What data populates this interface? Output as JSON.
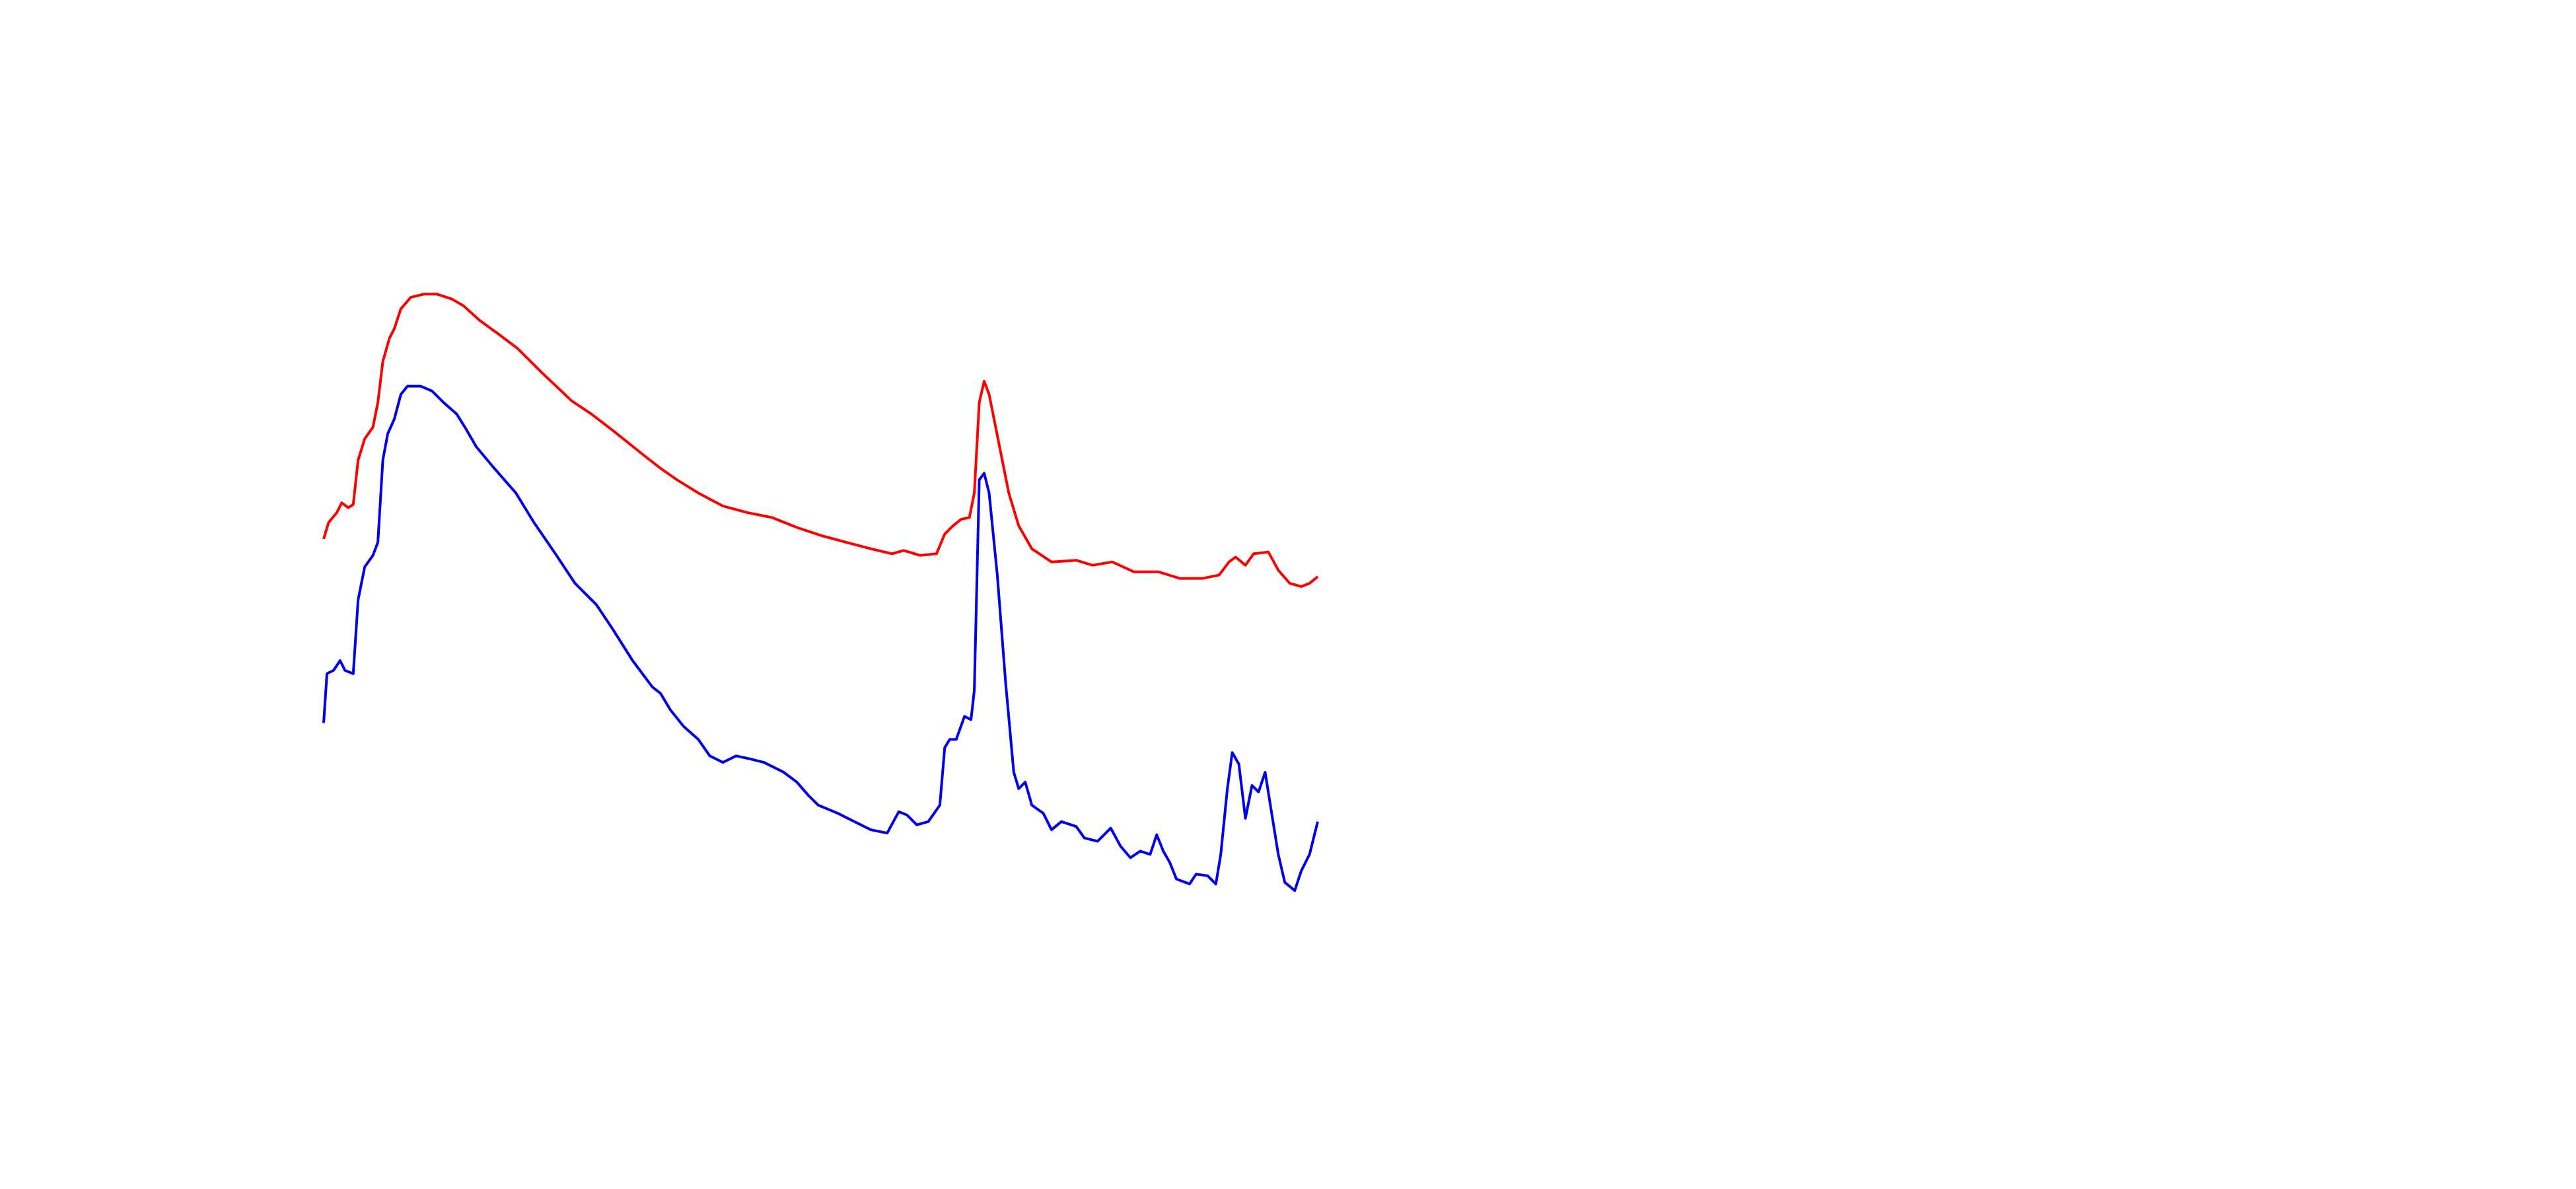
{
  "chart_data": {
    "type": "line",
    "xlim": [
      197,
      802
    ],
    "ylim": [
      0,
      100
    ],
    "series": [
      {
        "color": "#ff0000",
        "x": [
          197,
          200,
          205,
          208,
          212,
          215,
          218,
          222,
          227,
          230,
          233,
          237,
          240,
          244,
          250,
          258,
          266,
          275,
          282,
          292,
          303,
          315,
          330,
          348,
          360,
          373,
          383,
          393,
          402,
          412,
          425,
          440,
          455,
          470,
          485,
          500,
          515,
          530,
          543,
          550,
          560,
          570,
          575,
          580,
          585,
          590,
          593,
          596,
          599,
          602,
          608,
          614,
          620,
          628,
          640,
          655,
          665,
          677,
          690,
          705,
          718,
          732,
          742,
          748,
          752,
          758,
          763,
          772,
          778,
          785,
          792,
          797,
          802
        ],
        "values": [
          58,
          60.5,
          62,
          63.5,
          62.75,
          63.25,
          70,
          73.25,
          75,
          78.75,
          85,
          88.5,
          90,
          93,
          94.75,
          95.25,
          95.25,
          94.5,
          93.5,
          91.25,
          89.25,
          87,
          83.25,
          79,
          77,
          74.5,
          72.5,
          70.5,
          68.75,
          67,
          65,
          63,
          62,
          61.25,
          59.75,
          58.5,
          57.5,
          56.5,
          55.75,
          56.25,
          55.5,
          55.75,
          58.75,
          60,
          61,
          61.25,
          65,
          78.75,
          82,
          80,
          72.5,
          65,
          60,
          56.5,
          54.5,
          54.75,
          54,
          54.5,
          53,
          53,
          52,
          52,
          52.5,
          54.5,
          55.25,
          54,
          55.75,
          56,
          53.25,
          51.25,
          50.75,
          51.25,
          52.25
        ]
      },
      {
        "color": "#0000ee",
        "x": [
          197,
          199,
          203,
          207,
          210,
          215,
          218,
          222,
          227,
          230,
          233,
          236,
          240,
          244,
          248,
          256,
          263,
          270,
          278,
          283,
          290,
          300,
          314,
          325,
          338,
          350,
          363,
          373,
          385,
          397,
          402,
          408,
          416,
          425,
          432,
          440,
          448,
          457,
          465,
          477,
          485,
          492,
          498,
          510,
          520,
          530,
          540,
          547,
          552,
          558,
          565,
          572,
          575,
          578,
          582,
          587,
          591,
          593,
          596,
          599,
          602,
          607,
          612,
          617,
          620,
          624,
          628,
          635,
          640,
          646,
          655,
          660,
          668,
          676,
          682,
          688,
          694,
          700,
          704,
          708,
          712,
          716,
          724,
          728,
          735,
          740,
          743,
          747,
          750,
          754,
          758,
          762,
          766,
          770,
          774,
          778,
          782,
          788,
          792,
          797,
          802
        ],
        "values": [
          30,
          37.5,
          38,
          39.5,
          38,
          37.5,
          48.75,
          53.75,
          55.5,
          57.5,
          70,
          74,
          76.25,
          80,
          81.25,
          81.25,
          80.5,
          78.75,
          77,
          75,
          72,
          69,
          65,
          60.5,
          55.75,
          51.25,
          48,
          44.25,
          39.5,
          35.5,
          34.5,
          32,
          29.5,
          27.5,
          25,
          24,
          25,
          24.5,
          24,
          22.5,
          21,
          19,
          17.5,
          16.25,
          15,
          13.75,
          13.25,
          16.5,
          16,
          14.5,
          15,
          17.5,
          26.25,
          27.5,
          27.5,
          31,
          30.5,
          35,
          67,
          68,
          65,
          52.5,
          36.25,
          22.5,
          20,
          21,
          17.5,
          16.25,
          13.75,
          15,
          14.25,
          12.5,
          12,
          14,
          11.25,
          9.5,
          10.5,
          10,
          13,
          10.5,
          8.75,
          6.25,
          5.5,
          7,
          6.75,
          5.5,
          10,
          20,
          25.5,
          23.75,
          15.5,
          20.5,
          19.5,
          22.5,
          16.25,
          10,
          5.75,
          4.5,
          7.5,
          10,
          15
        ]
      }
    ]
  }
}
